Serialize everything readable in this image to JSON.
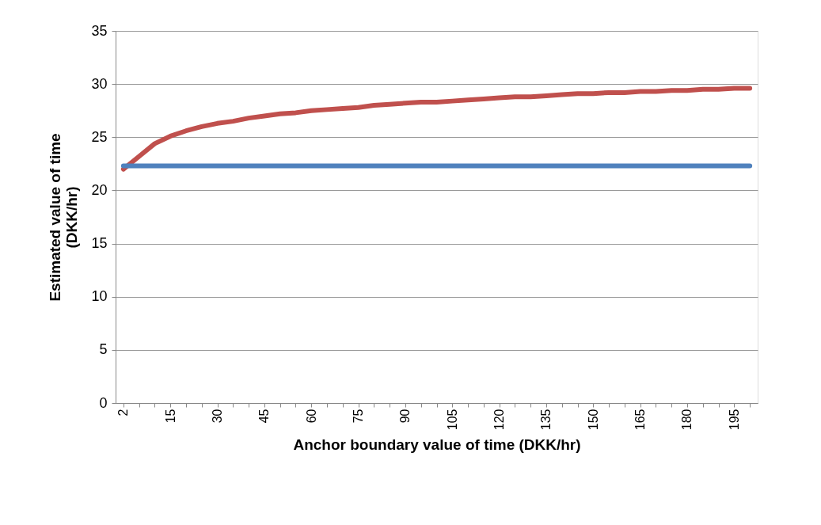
{
  "chart_data": {
    "type": "line",
    "xlabel": "Anchor boundary  value of time (DKK/hr)",
    "ylabel": "Estimated value of time\n(DKK/hr)",
    "categories": [
      "2",
      null,
      null,
      "15",
      null,
      null,
      "30",
      null,
      null,
      "45",
      null,
      null,
      "60",
      null,
      null,
      "75",
      null,
      null,
      "90",
      null,
      null,
      "105",
      null,
      null,
      "120",
      null,
      null,
      "135",
      null,
      null,
      "150",
      null,
      null,
      "165",
      null,
      null,
      "180",
      null,
      null,
      "195",
      null
    ],
    "series": [
      {
        "color": "#c0504d",
        "values": [
          22.0,
          23.2,
          24.4,
          25.1,
          25.6,
          26.0,
          26.3,
          26.5,
          26.8,
          27.0,
          27.2,
          27.3,
          27.5,
          27.6,
          27.7,
          27.8,
          28.0,
          28.1,
          28.2,
          28.3,
          28.3,
          28.4,
          28.5,
          28.6,
          28.7,
          28.8,
          28.8,
          28.9,
          29.0,
          29.1,
          29.1,
          29.2,
          29.2,
          29.3,
          29.3,
          29.4,
          29.4,
          29.5,
          29.5,
          29.6,
          29.6
        ]
      },
      {
        "color": "#4f81bd",
        "values": [
          22.3,
          22.3,
          22.3,
          22.3,
          22.3,
          22.3,
          22.3,
          22.3,
          22.3,
          22.3,
          22.3,
          22.3,
          22.3,
          22.3,
          22.3,
          22.3,
          22.3,
          22.3,
          22.3,
          22.3,
          22.3,
          22.3,
          22.3,
          22.3,
          22.3,
          22.3,
          22.3,
          22.3,
          22.3,
          22.3,
          22.3,
          22.3,
          22.3,
          22.3,
          22.3,
          22.3,
          22.3,
          22.3,
          22.3,
          22.3,
          22.3
        ]
      }
    ],
    "ylim": [
      0,
      35
    ],
    "yticks": [
      0,
      5,
      10,
      15,
      20,
      25,
      30,
      35
    ],
    "grid": "y",
    "legend": false,
    "marker": "none",
    "line_style": "solid"
  }
}
